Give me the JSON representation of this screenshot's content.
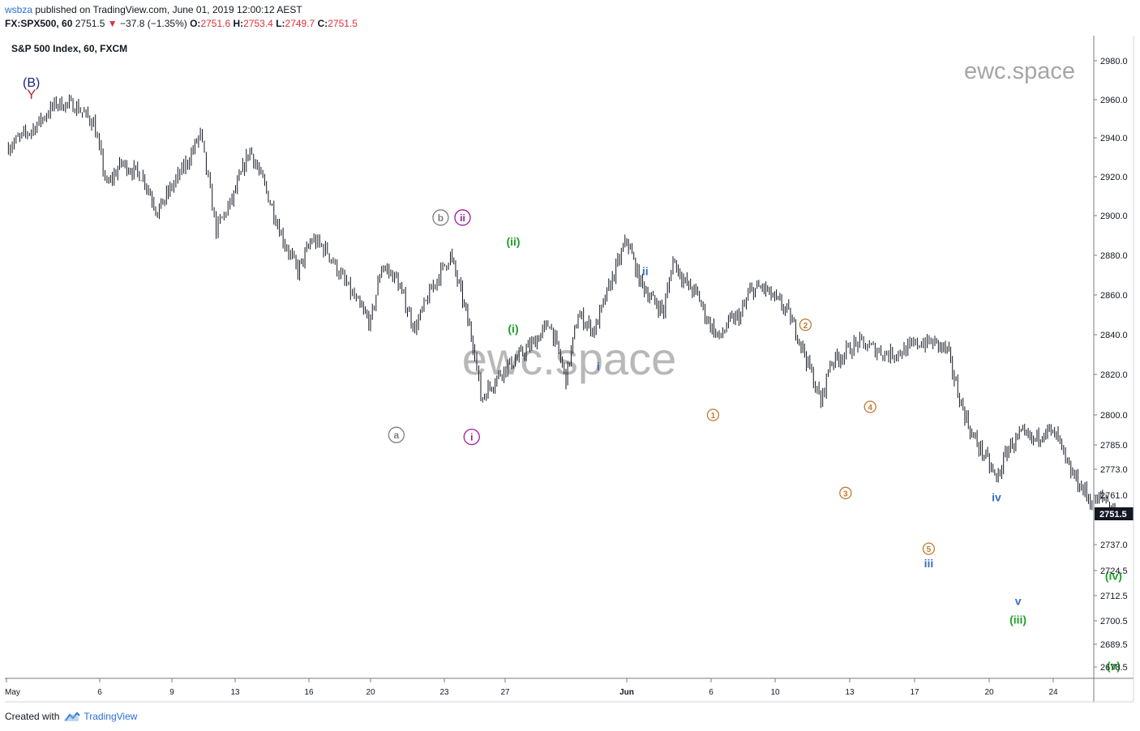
{
  "header": {
    "user": "wsbza",
    "published_text": "published on TradingView.com, June 01, 2019 12:00:12 AEST",
    "symbol": "FX:SPX500, 60",
    "last": "2751.5",
    "change": "−37.8 (−1.35%)",
    "o_label": "O:",
    "o": "2751.6",
    "h_label": "H:",
    "h": "2753.4",
    "l_label": "L:",
    "l": "2749.7",
    "c_label": "C:",
    "c": "2751.5",
    "instrument": "S&P 500 Index, 60, FXCM"
  },
  "footer": {
    "created_with": "Created with",
    "brand": "TradingView"
  },
  "watermark": {
    "text": "ewc.space"
  },
  "colors": {
    "candles": "#131722",
    "axis": "#787b86",
    "price_badge": "#131722",
    "red": "#c62828",
    "navy": "#1a237e",
    "grey": "#7e7e7e",
    "magenta": "#a0199a",
    "green": "#1fa12a",
    "blue": "#3a6fbf",
    "orange": "#c07a30"
  },
  "chart_data": {
    "type": "candlestick",
    "timeframe": "60",
    "last_price": 2751.5,
    "price_ticks": [
      2980.0,
      2960.0,
      2940.0,
      2920.0,
      2900.0,
      2880.0,
      2860.0,
      2840.0,
      2820.0,
      2800.0,
      2785.0,
      2773.0,
      2761.0,
      2737.0,
      2724.5,
      2712.5,
      2700.5,
      2689.5,
      2678.5
    ],
    "price_tick_labels": [
      "2980.0",
      "2960.0",
      "2940.0",
      "2920.0",
      "2900.0",
      "2880.0",
      "2860.0",
      "2840.0",
      "2820.0",
      "2800.0",
      "2785.0",
      "2773.0",
      "2761.0",
      "2737.0",
      "2724.5",
      "2712.5",
      "2700.5",
      "2689.5",
      "2678.5"
    ],
    "date_ticks": [
      "May",
      "6",
      "9",
      "13",
      "16",
      "20",
      "23",
      "27",
      "Jun",
      "6",
      "10",
      "13",
      "17",
      "20",
      "24"
    ],
    "path": [
      [
        0,
        2935
      ],
      [
        0.8,
        2944
      ],
      [
        1.6,
        2958
      ],
      [
        2.2,
        2957
      ],
      [
        2.8,
        2948
      ],
      [
        3.2,
        2915
      ],
      [
        3.6,
        2927
      ],
      [
        4.2,
        2920
      ],
      [
        4.6,
        2902
      ],
      [
        5.0,
        2915
      ],
      [
        5.5,
        2928
      ],
      [
        5.9,
        2942
      ],
      [
        6.4,
        2893
      ],
      [
        6.9,
        2908
      ],
      [
        7.4,
        2934
      ],
      [
        7.8,
        2915
      ],
      [
        8.3,
        2888
      ],
      [
        8.7,
        2872
      ],
      [
        9.1,
        2888
      ],
      [
        9.6,
        2882
      ],
      [
        10.1,
        2868
      ],
      [
        10.6,
        2855
      ],
      [
        11.0,
        2846
      ],
      [
        11.3,
        2875
      ],
      [
        11.7,
        2868
      ],
      [
        12.2,
        2843
      ],
      [
        12.7,
        2865
      ],
      [
        13.2,
        2880
      ],
      [
        13.6,
        2858
      ],
      [
        14.0,
        2832
      ],
      [
        14.2,
        2808
      ],
      [
        14.5,
        2814
      ],
      [
        14.9,
        2822
      ],
      [
        15.3,
        2828
      ],
      [
        15.7,
        2836
      ],
      [
        16.1,
        2846
      ],
      [
        16.5,
        2818
      ],
      [
        16.8,
        2850
      ],
      [
        17.2,
        2842
      ],
      [
        17.6,
        2866
      ],
      [
        18.0,
        2888
      ],
      [
        18.4,
        2868
      ],
      [
        18.8,
        2858
      ],
      [
        19.2,
        2852
      ],
      [
        19.5,
        2878
      ],
      [
        19.9,
        2866
      ],
      [
        20.3,
        2860
      ],
      [
        20.6,
        2848
      ],
      [
        21.0,
        2838
      ],
      [
        21.3,
        2846
      ],
      [
        21.7,
        2850
      ],
      [
        22.0,
        2862
      ],
      [
        22.4,
        2864
      ],
      [
        22.8,
        2858
      ],
      [
        23.2,
        2852
      ],
      [
        23.6,
        2838
      ],
      [
        24.0,
        2820
      ],
      [
        24.3,
        2806
      ],
      [
        24.6,
        2826
      ],
      [
        25.0,
        2830
      ],
      [
        25.5,
        2836
      ],
      [
        26.0,
        2833
      ],
      [
        26.5,
        2830
      ],
      [
        27.0,
        2832
      ],
      [
        27.5,
        2836
      ],
      [
        28.0,
        2836
      ],
      [
        28.4,
        2832
      ],
      [
        28.8,
        2808
      ],
      [
        29.2,
        2790
      ],
      [
        29.6,
        2780
      ],
      [
        30.0,
        2768
      ],
      [
        30.4,
        2784
      ],
      [
        30.8,
        2790
      ],
      [
        31.2,
        2787
      ],
      [
        31.6,
        2793
      ],
      [
        32.0,
        2788
      ],
      [
        32.3,
        2774
      ],
      [
        32.7,
        2766
      ],
      [
        33.1,
        2757
      ],
      [
        33.5,
        2760
      ],
      [
        33.9,
        2752
      ]
    ],
    "labels": [
      {
        "text": "(B)",
        "x": 0.8,
        "price": 2969,
        "style": "navy"
      },
      {
        "text": "Y",
        "x": 0.8,
        "price": 2963,
        "style": "red"
      },
      {
        "text": "b",
        "x": 12.9,
        "price": 2899,
        "style": "grey-circle"
      },
      {
        "text": "ii",
        "x": 13.6,
        "price": 2899,
        "style": "magenta-circle"
      },
      {
        "text": "a",
        "x": 11.7,
        "price": 2790,
        "style": "grey-circle"
      },
      {
        "text": "i",
        "x": 13.9,
        "price": 2789,
        "style": "magenta-circle"
      },
      {
        "text": "(ii)",
        "x": 15.2,
        "price": 2887,
        "style": "green"
      },
      {
        "text": "(i)",
        "x": 15.2,
        "price": 2843,
        "style": "green"
      },
      {
        "text": "ii",
        "x": 18.6,
        "price": 2872,
        "style": "blue"
      },
      {
        "text": "i",
        "x": 17.3,
        "price": 2824,
        "style": "blue"
      },
      {
        "text": "2",
        "x": 23.8,
        "price": 2845,
        "style": "orange-circle"
      },
      {
        "text": "1",
        "x": 20.8,
        "price": 2800,
        "style": "orange-circle"
      },
      {
        "text": "4",
        "x": 25.9,
        "price": 2804,
        "style": "orange-circle"
      },
      {
        "text": "3",
        "x": 25.1,
        "price": 2762,
        "style": "orange-circle"
      },
      {
        "text": "5",
        "x": 27.8,
        "price": 2735,
        "style": "orange-circle"
      },
      {
        "text": "iii",
        "x": 27.8,
        "price": 2728,
        "style": "blue"
      },
      {
        "text": "iv",
        "x": 30.0,
        "price": 2760,
        "style": "blue"
      },
      {
        "text": "v",
        "x": 30.7,
        "price": 2710,
        "style": "blue"
      },
      {
        "text": "(iii)",
        "x": 30.7,
        "price": 2701,
        "style": "green"
      },
      {
        "text": "(iv)",
        "x": 33.8,
        "price": 2722,
        "style": "green"
      },
      {
        "text": "(v)",
        "x": 33.8,
        "price": 2679,
        "style": "green"
      }
    ]
  }
}
